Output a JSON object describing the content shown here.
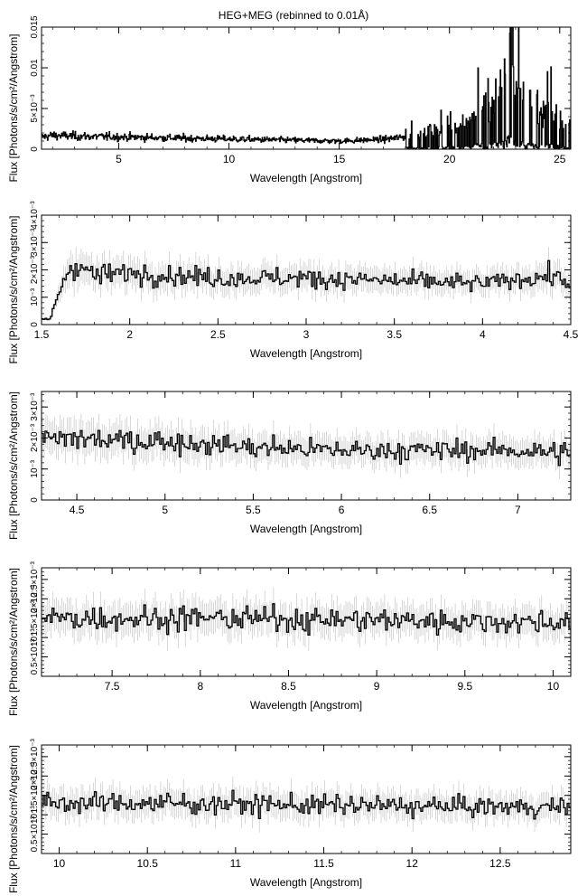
{
  "figure": {
    "title": "HEG+MEG (rebinned to 0.01Å)"
  },
  "chart_data": [
    {
      "type": "line",
      "style": "histogram-step",
      "xlabel": "Wavelength [Angstrom]",
      "ylabel": "Flux [Photons/s/cm²/Angstrom]",
      "xlim": [
        1.5,
        25.5
      ],
      "ylim": [
        0,
        0.015
      ],
      "xticks": [
        {
          "v": 5,
          "label": "5"
        },
        {
          "v": 10,
          "label": "10"
        },
        {
          "v": 15,
          "label": "15"
        },
        {
          "v": 20,
          "label": "20"
        },
        {
          "v": 25,
          "label": "25"
        }
      ],
      "yticks": [
        {
          "v": 0,
          "label": "0"
        },
        {
          "v": 0.005,
          "label": "5×10⁻³"
        },
        {
          "v": 0.01,
          "label": "0.01"
        },
        {
          "v": 0.015,
          "label": "0.015"
        }
      ],
      "series": [
        {
          "x": [
            1.5,
            2,
            3,
            4,
            5,
            6,
            7,
            8,
            9,
            10,
            11,
            12,
            13,
            14,
            15,
            16,
            17,
            18,
            18.5,
            19,
            19.5,
            20,
            20.5,
            21,
            21.5,
            22,
            22.5,
            22.8,
            23,
            23.5,
            24,
            24.5,
            25,
            25.5
          ],
          "y": [
            0.0015,
            0.0017,
            0.0016,
            0.00155,
            0.0015,
            0.00145,
            0.0014,
            0.00135,
            0.0013,
            0.00125,
            0.0012,
            0.00115,
            0.0011,
            0.00105,
            0.001,
            0.0011,
            0.0012,
            0.0015,
            0.0018,
            0.002,
            0.0022,
            0.0025,
            0.003,
            0.004,
            0.005,
            0.006,
            0.008,
            0.0148,
            0.009,
            0.005,
            0.004,
            0.005,
            0.0035,
            0.003
          ]
        }
      ]
    },
    {
      "type": "line",
      "style": "histogram-step",
      "xlabel": "Wavelength [Angstrom]",
      "ylabel": "Flux [Photons/s/cm²/Angstrom]",
      "xlim": [
        1.5,
        4.5
      ],
      "ylim": [
        0,
        0.004
      ],
      "xticks": [
        {
          "v": 1.5,
          "label": "1.5"
        },
        {
          "v": 2,
          "label": "2"
        },
        {
          "v": 2.5,
          "label": "2.5"
        },
        {
          "v": 3,
          "label": "3"
        },
        {
          "v": 3.5,
          "label": "3.5"
        },
        {
          "v": 4,
          "label": "4"
        },
        {
          "v": 4.5,
          "label": "4.5"
        }
      ],
      "yticks": [
        {
          "v": 0,
          "label": "0"
        },
        {
          "v": 0.001,
          "label": "10⁻³"
        },
        {
          "v": 0.002,
          "label": "2×10⁻³"
        },
        {
          "v": 0.003,
          "label": "3×10⁻³"
        },
        {
          "v": 0.004,
          "label": "4×10⁻³"
        }
      ],
      "series": [
        {
          "x": [
            1.5,
            1.55,
            1.6,
            1.65,
            1.7,
            1.75,
            1.8,
            2,
            2.5,
            3,
            3.5,
            4,
            4.4,
            4.5
          ],
          "y": [
            0.0002,
            0.0002,
            0.0012,
            0.002,
            0.0022,
            0.002,
            0.0018,
            0.0019,
            0.0017,
            0.0017,
            0.0016,
            0.0015,
            0.0018,
            0.0015
          ]
        }
      ]
    },
    {
      "type": "line",
      "style": "histogram-step",
      "xlabel": "Wavelength [Angstrom]",
      "ylabel": "Flux [Photons/s/cm²/Angstrom]",
      "xlim": [
        4.3,
        7.3
      ],
      "ylim": [
        0,
        0.0035
      ],
      "xticks": [
        {
          "v": 4.5,
          "label": "4.5"
        },
        {
          "v": 5,
          "label": "5"
        },
        {
          "v": 5.5,
          "label": "5.5"
        },
        {
          "v": 6,
          "label": "6"
        },
        {
          "v": 6.5,
          "label": "6.5"
        },
        {
          "v": 7,
          "label": "7"
        }
      ],
      "yticks": [
        {
          "v": 0,
          "label": "0"
        },
        {
          "v": 0.001,
          "label": "10⁻³"
        },
        {
          "v": 0.002,
          "label": "2×10⁻³"
        },
        {
          "v": 0.003,
          "label": "3×10⁻³"
        }
      ],
      "series": [
        {
          "x": [
            4.3,
            4.5,
            4.7,
            5,
            5.5,
            6,
            6.5,
            7,
            7.3
          ],
          "y": [
            0.0019,
            0.002,
            0.0019,
            0.0019,
            0.0017,
            0.0016,
            0.0016,
            0.0016,
            0.0015
          ]
        }
      ]
    },
    {
      "type": "line",
      "style": "histogram-step",
      "xlabel": "Wavelength [Angstrom]",
      "ylabel": "Flux [Photons/s/cm²/Angstrom]",
      "xlim": [
        7.1,
        10.1
      ],
      "ylim": [
        0,
        0.0028
      ],
      "xticks": [
        {
          "v": 7.5,
          "label": "7.5"
        },
        {
          "v": 8,
          "label": "8"
        },
        {
          "v": 8.5,
          "label": "8.5"
        },
        {
          "v": 9,
          "label": "9"
        },
        {
          "v": 9.5,
          "label": "9.5"
        },
        {
          "v": 10,
          "label": "10"
        }
      ],
      "yticks": [
        {
          "v": 0.0005,
          "label": "0.5×10⁻³"
        },
        {
          "v": 0.001,
          "label": "10⁻³"
        },
        {
          "v": 0.0015,
          "label": "1.5×10⁻³"
        },
        {
          "v": 0.002,
          "label": "2×10⁻³"
        },
        {
          "v": 0.0025,
          "label": "2.5×10⁻³"
        }
      ],
      "series": [
        {
          "x": [
            7.1,
            7.5,
            8,
            8.5,
            9,
            9.5,
            10,
            10.1
          ],
          "y": [
            0.0015,
            0.0015,
            0.0015,
            0.00148,
            0.00145,
            0.00142,
            0.0014,
            0.0014
          ]
        }
      ]
    },
    {
      "type": "line",
      "style": "histogram-step",
      "xlabel": "Wavelength [Angstrom]",
      "ylabel": "Flux [Photons/s/cm²/Angstrom]",
      "xlim": [
        9.9,
        12.9
      ],
      "ylim": [
        0,
        0.0028
      ],
      "xticks": [
        {
          "v": 10,
          "label": "10"
        },
        {
          "v": 10.5,
          "label": "10.5"
        },
        {
          "v": 11,
          "label": "11"
        },
        {
          "v": 11.5,
          "label": "11.5"
        },
        {
          "v": 12,
          "label": "12"
        },
        {
          "v": 12.5,
          "label": "12.5"
        }
      ],
      "yticks": [
        {
          "v": 0.0005,
          "label": "0.5×10⁻³"
        },
        {
          "v": 0.001,
          "label": "10⁻³"
        },
        {
          "v": 0.0015,
          "label": "1.5×10⁻³"
        },
        {
          "v": 0.002,
          "label": "2×10⁻³"
        },
        {
          "v": 0.0025,
          "label": "2.5×10⁻³"
        }
      ],
      "series": [
        {
          "x": [
            9.9,
            10.5,
            11,
            11.5,
            12,
            12.5,
            12.9
          ],
          "y": [
            0.0013,
            0.0013,
            0.00128,
            0.00125,
            0.00122,
            0.0012,
            0.0012
          ]
        }
      ]
    }
  ]
}
